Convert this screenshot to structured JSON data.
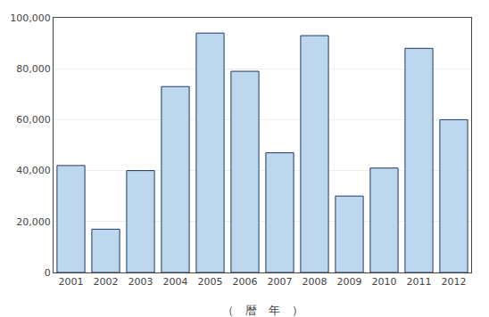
{
  "chart_data": {
    "type": "bar",
    "xlabel": "（　暦　年　）",
    "categories": [
      "2001",
      "2002",
      "2003",
      "2004",
      "2005",
      "2006",
      "2007",
      "2008",
      "2009",
      "2010",
      "2011",
      "2012"
    ],
    "values": [
      42000,
      17000,
      40000,
      73000,
      94000,
      79000,
      47000,
      93000,
      30000,
      41000,
      88000,
      60000
    ],
    "color": "#BDD7EE",
    "ylim": [
      0,
      100000
    ],
    "yticks": [
      0,
      {
        "value": 20000,
        "label": "20,000"
      },
      {
        "value": 40000,
        "label": "40,000"
      },
      {
        "value": 60000,
        "label": "60,000"
      },
      {
        "value": 80000,
        "label": "80,000"
      },
      {
        "value": 100000,
        "label": "100,000"
      }
    ],
    "grid": true
  }
}
